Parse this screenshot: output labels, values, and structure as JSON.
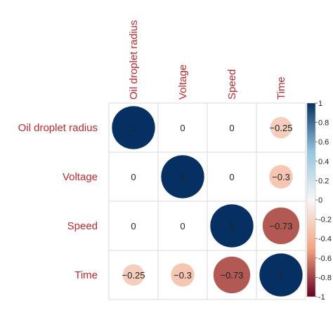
{
  "chart_data": {
    "type": "heatmap",
    "style": "correlation-circle-matrix",
    "variables": [
      "Oil droplet radius",
      "Voltage",
      "Speed",
      "Time"
    ],
    "matrix": [
      [
        1,
        0,
        0,
        -0.25
      ],
      [
        0,
        1,
        0,
        -0.3
      ],
      [
        0,
        0,
        1,
        -0.73
      ],
      [
        -0.25,
        -0.3,
        -0.73,
        1
      ]
    ],
    "cell_text": [
      [
        "1",
        "0",
        "0",
        "−0.25"
      ],
      [
        "0",
        "1",
        "0",
        "−0.3"
      ],
      [
        "0",
        "0",
        "1",
        "−0.73"
      ],
      [
        "−0.25",
        "−0.3",
        "−0.73",
        "1"
      ]
    ],
    "colorbar": {
      "range": [
        -1,
        1
      ],
      "ticks": [
        "1",
        "0.8",
        "0.6",
        "0.4",
        "0.2",
        "0",
        "-0.2",
        "-0.4",
        "-0.6",
        "-0.8",
        "-1"
      ],
      "colors": {
        "neg1": "#67001f",
        "neg05": "#f4a582",
        "zero": "#f7f7f7",
        "pos05": "#92c5de",
        "pos1": "#053061"
      }
    },
    "label_color": "#c0282d",
    "grid": true
  }
}
